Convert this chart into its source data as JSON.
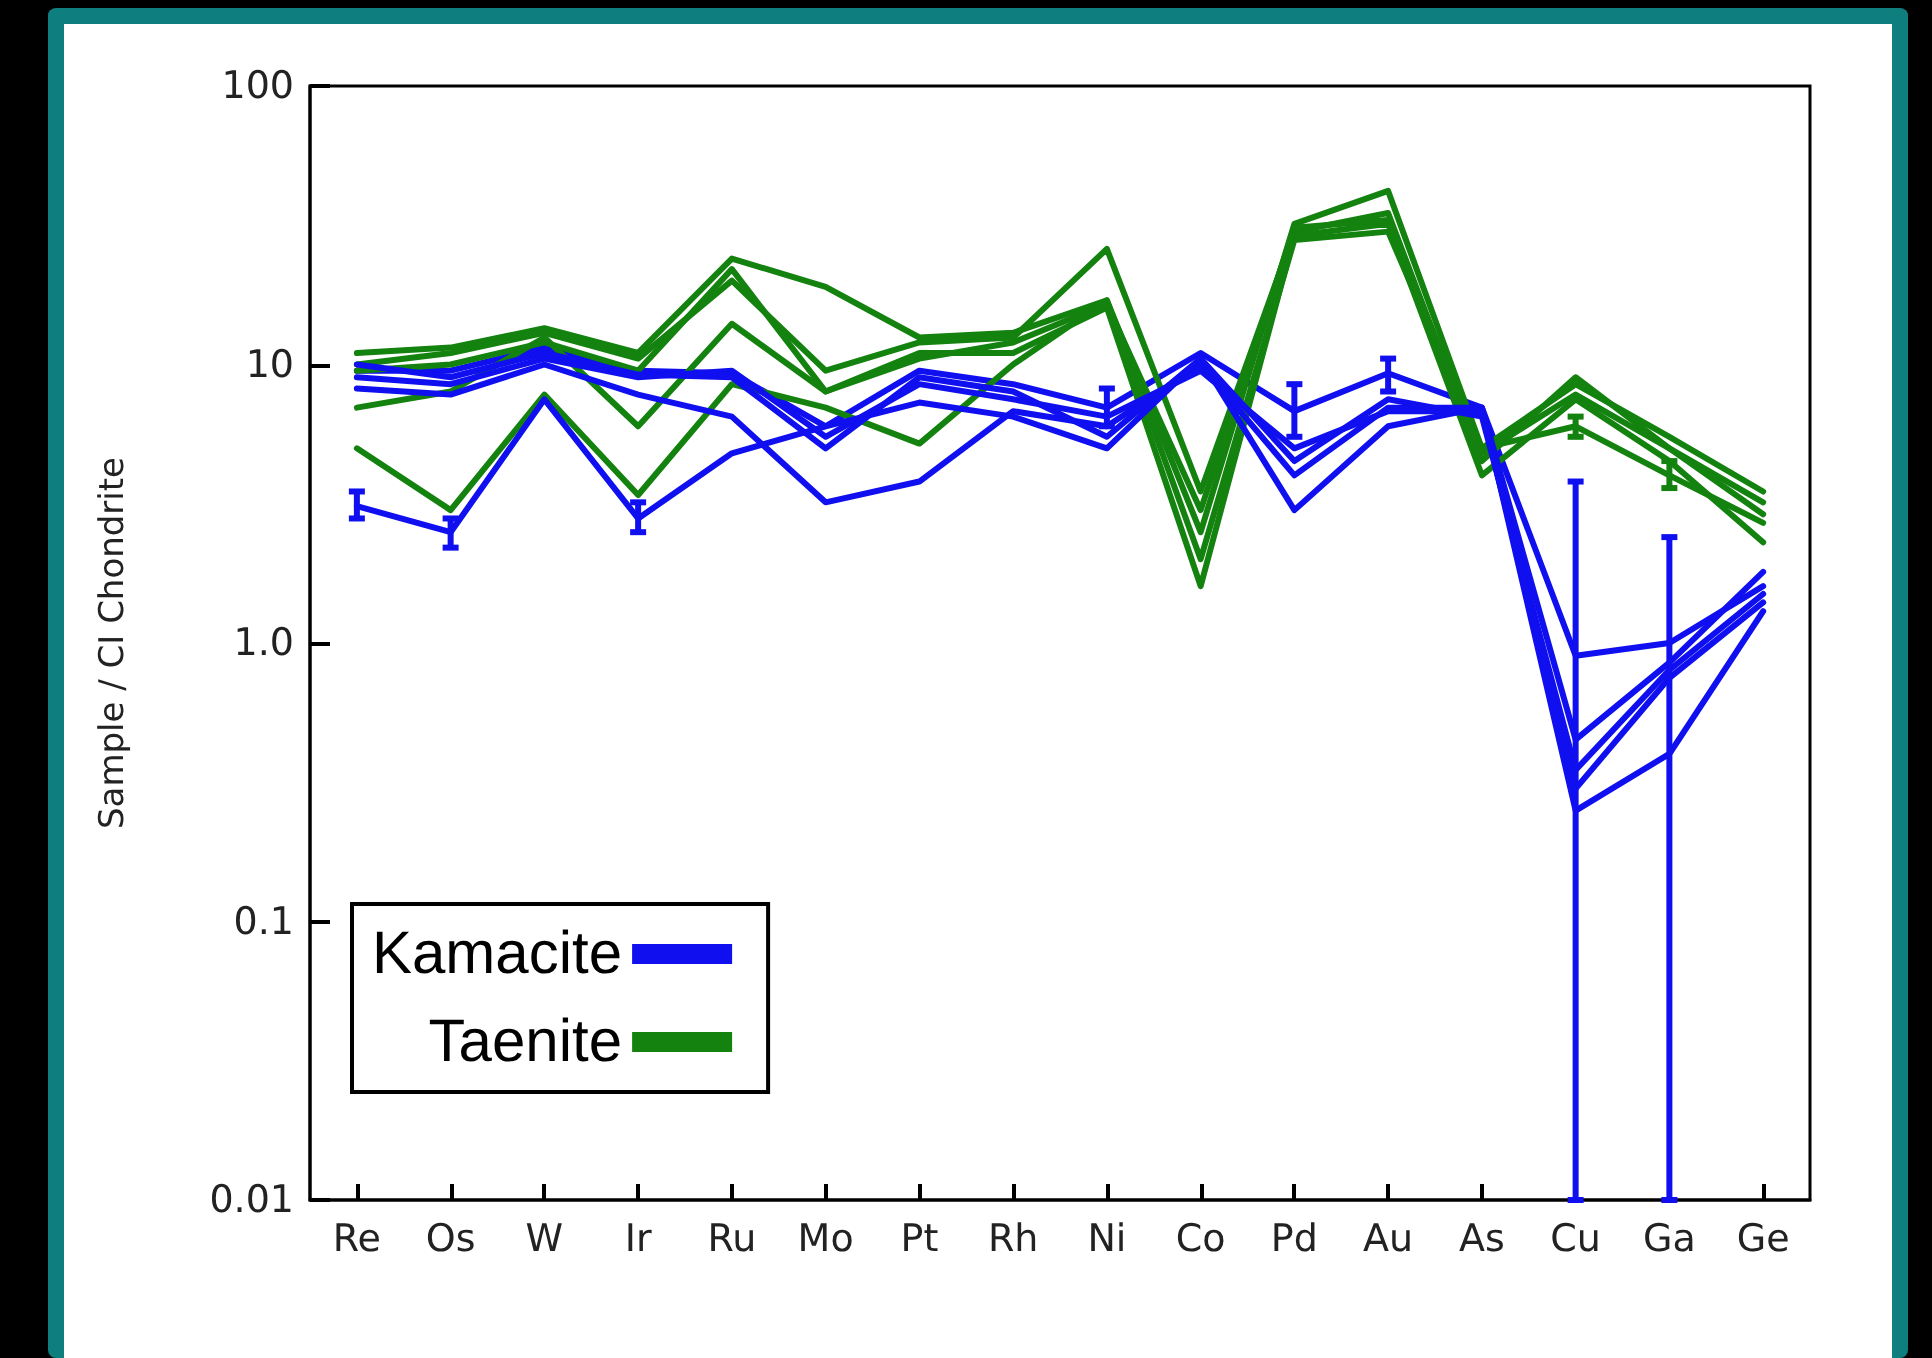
{
  "chart_data": {
    "type": "line",
    "ylabel": "Sample / CI Chondrite",
    "log": true,
    "grid": false,
    "legend": "bottom left",
    "marker": "none",
    "line_style": "solid",
    "categories": [
      "Re",
      "Os",
      "W",
      "Ir",
      "Ru",
      "Mo",
      "Pt",
      "Rh",
      "Ni",
      "Co",
      "Pd",
      "Au",
      "As",
      "Cu",
      "Ga",
      "Ge"
    ],
    "ylim": [
      0.01,
      100
    ],
    "yticks": [
      0.01,
      0.1,
      {
        "value": 1,
        "label": "1.0"
      },
      10,
      100
    ],
    "series": [
      {
        "name": "Kamacite",
        "color": "#0f0ff0",
        "values": [
          9.5,
          9.5,
          11.5,
          9.5,
          9.3,
          6,
          9.5,
          8.5,
          7,
          11,
          6.8,
          9.3,
          7,
          0.9,
          1.0,
          1.6
        ],
        "errors": [
          null,
          null,
          null,
          null,
          null,
          null,
          null,
          null,
          [
            6,
            8.2
          ],
          null,
          [
            5.5,
            8.5
          ],
          [
            8,
            10.5
          ],
          null,
          [
            0.01,
            3.8
          ],
          null,
          null
        ]
      },
      {
        "name": "Taenite",
        "color": "#14820f",
        "values": [
          11,
          11.5,
          13.5,
          11,
          24,
          19,
          12.5,
          13,
          17,
          2.5,
          32,
          42,
          5,
          8.5,
          5.5,
          3.5
        ]
      },
      {
        "color": "#14820f",
        "values": [
          10,
          11,
          13,
          10.5,
          20,
          9.5,
          12,
          12.5,
          26,
          3.5,
          30,
          35,
          4.5,
          9,
          5,
          3.2
        ]
      },
      {
        "color": "#14820f",
        "values": [
          7,
          8,
          12.5,
          6,
          14,
          8,
          11,
          11,
          16,
          1.6,
          29,
          32,
          4,
          7.5,
          4.5,
          2.3
        ]
      },
      {
        "color": "#14820f",
        "values": [
          5,
          3,
          7.8,
          3.4,
          8.5,
          7,
          5.2,
          10,
          17,
          2,
          28,
          30,
          5,
          6,
          4,
          2.7
        ]
      },
      {
        "color": "#14820f",
        "values": [
          9.5,
          10,
          12,
          9.5,
          22,
          8,
          10.5,
          12,
          16.5,
          3,
          31,
          33,
          4.8,
          7.8,
          5,
          2.9
        ],
        "errors": [
          null,
          null,
          null,
          null,
          null,
          null,
          null,
          null,
          null,
          null,
          null,
          null,
          null,
          [
            5.5,
            6.5
          ],
          [
            3.6,
            4.5
          ],
          null
        ]
      },
      {
        "color": "#0f0ff0",
        "values": [
          3.1,
          2.5,
          7.5,
          2.8,
          4.8,
          6,
          7.3,
          6.5,
          5,
          10.5,
          3,
          6,
          7,
          0.25,
          0.4,
          1.3
        ],
        "errors": [
          [
            2.8,
            3.5
          ],
          [
            2.2,
            2.8
          ],
          null,
          [
            2.5,
            3.2
          ],
          null,
          null,
          null,
          null,
          null,
          null,
          null,
          null,
          null,
          null,
          [
            0.01,
            2.4
          ],
          null
        ]
      },
      {
        "color": "#0f0ff0",
        "values": [
          8.2,
          7.8,
          10,
          7.8,
          6.5,
          3.2,
          3.8,
          6.8,
          6,
          10,
          4,
          7,
          7,
          0.45,
          0.85,
          1.8
        ]
      },
      {
        "color": "#0f0ff0",
        "values": [
          10,
          9,
          11,
          9.2,
          9,
          5,
          9,
          8,
          5.5,
          10.5,
          4.5,
          7.5,
          6.5,
          0.35,
          0.8,
          1.5
        ]
      },
      {
        "color": "#0f0ff0",
        "values": [
          9,
          8.5,
          10.5,
          9,
          9.5,
          5.5,
          8.5,
          7.5,
          6.5,
          9.5,
          5,
          6.8,
          6.8,
          0.3,
          0.75,
          1.4
        ]
      }
    ]
  }
}
